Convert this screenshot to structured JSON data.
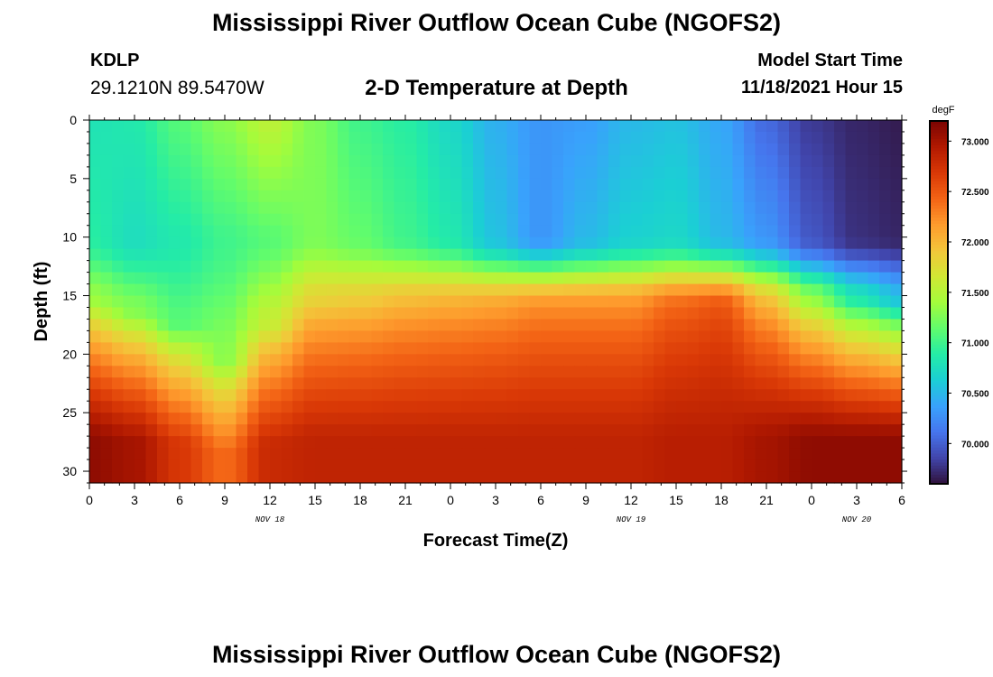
{
  "header": {
    "title": "Mississippi River Outflow Ocean Cube (NGOFS2)",
    "station_id": "KDLP",
    "coordinates": "29.1210N  89.5470W",
    "subtitle": "2-D Temperature at Depth",
    "model_start_label": "Model Start Time",
    "model_start_value": "11/18/2021 Hour 15"
  },
  "footer": {
    "title": "Mississippi River Outflow Ocean Cube (NGOFS2)"
  },
  "colors": {
    "background": "#ffffff",
    "colormap": [
      "#30123b",
      "#4145ab",
      "#4675ed",
      "#39a2fc",
      "#1bcfd4",
      "#24eca6",
      "#61fc6c",
      "#a4fc3b",
      "#d1e834",
      "#f3c63a",
      "#fe9b2d",
      "#f36315",
      "#d93806",
      "#b11901",
      "#7a0402"
    ]
  },
  "chart_data": {
    "type": "heatmap",
    "xlabel": "Forecast Time(Z)",
    "ylabel": "Depth (ft)",
    "colorbar_label": "degF",
    "xlim": [
      0,
      54
    ],
    "ylim": [
      0,
      31
    ],
    "y_inverted": true,
    "x_ticks": [
      0,
      3,
      6,
      9,
      12,
      15,
      18,
      21,
      24,
      27,
      30,
      33,
      36,
      39,
      42,
      45,
      48,
      51,
      54
    ],
    "x_tick_labels": [
      "0",
      "3",
      "6",
      "9",
      "12",
      "15",
      "18",
      "21",
      "0",
      "3",
      "6",
      "9",
      "12",
      "15",
      "18",
      "21",
      "0",
      "3",
      "6"
    ],
    "date_labels": [
      {
        "x": 12,
        "label": "NOV 18"
      },
      {
        "x": 36,
        "label": "NOV 19"
      },
      {
        "x": 51,
        "label": "NOV 20"
      }
    ],
    "y_ticks": [
      0,
      5,
      10,
      15,
      20,
      25,
      30
    ],
    "y_tick_labels": [
      "0",
      "5",
      "10",
      "15",
      "20",
      "25",
      "30"
    ],
    "colorbar_range": [
      69.6,
      73.2
    ],
    "colorbar_ticks": [
      70.0,
      70.5,
      71.0,
      71.5,
      72.0,
      72.5,
      73.0
    ],
    "colorbar_tick_labels": [
      "70.000",
      "70.500",
      "71.000",
      "71.500",
      "72.000",
      "72.500",
      "73.000"
    ],
    "grid": false,
    "legend": "colorbar-right",
    "field_columns": [
      {
        "x": 0,
        "y_top": 0,
        "y_mid": 10,
        "y_deep": 16,
        "y_bottom": 31,
        "t_top": 70.8,
        "t_mid": 70.9,
        "t_deep": 71.4,
        "t_bottom": 73.1
      },
      {
        "x": 3,
        "y_top": 0,
        "y_mid": 10,
        "y_deep": 17,
        "y_bottom": 31,
        "t_top": 70.85,
        "t_mid": 70.75,
        "t_deep": 71.3,
        "t_bottom": 73.0
      },
      {
        "x": 6,
        "y_top": 0,
        "y_mid": 10,
        "y_deep": 18,
        "y_bottom": 31,
        "t_top": 71.1,
        "t_mid": 70.85,
        "t_deep": 71.1,
        "t_bottom": 72.7
      },
      {
        "x": 9,
        "y_top": 0,
        "y_mid": 10,
        "y_deep": 21,
        "y_bottom": 31,
        "t_top": 71.3,
        "t_mid": 71.0,
        "t_deep": 71.3,
        "t_bottom": 72.4
      },
      {
        "x": 12,
        "y_top": 0,
        "y_mid": 10,
        "y_deep": 18,
        "y_bottom": 31,
        "t_top": 71.55,
        "t_mid": 71.1,
        "t_deep": 71.6,
        "t_bottom": 72.8
      },
      {
        "x": 15,
        "y_top": 0,
        "y_mid": 10,
        "y_deep": 16,
        "y_bottom": 31,
        "t_top": 71.25,
        "t_mid": 71.25,
        "t_deep": 71.85,
        "t_bottom": 72.85
      },
      {
        "x": 18,
        "y_top": 0,
        "y_mid": 10,
        "y_deep": 16,
        "y_bottom": 31,
        "t_top": 71.0,
        "t_mid": 71.15,
        "t_deep": 71.9,
        "t_bottom": 72.85
      },
      {
        "x": 21,
        "y_top": 0,
        "y_mid": 10,
        "y_deep": 16,
        "y_bottom": 31,
        "t_top": 70.9,
        "t_mid": 71.0,
        "t_deep": 72.0,
        "t_bottom": 72.85
      },
      {
        "x": 24,
        "y_top": 0,
        "y_mid": 10,
        "y_deep": 16,
        "y_bottom": 31,
        "t_top": 70.7,
        "t_mid": 70.85,
        "t_deep": 72.05,
        "t_bottom": 72.85
      },
      {
        "x": 27,
        "y_top": 0,
        "y_mid": 10,
        "y_deep": 16,
        "y_bottom": 31,
        "t_top": 70.45,
        "t_mid": 70.55,
        "t_deep": 72.1,
        "t_bottom": 72.85
      },
      {
        "x": 30,
        "y_top": 0,
        "y_mid": 10,
        "y_deep": 16,
        "y_bottom": 31,
        "t_top": 70.3,
        "t_mid": 70.3,
        "t_deep": 72.2,
        "t_bottom": 72.85
      },
      {
        "x": 33,
        "y_top": 0,
        "y_mid": 10,
        "y_deep": 16,
        "y_bottom": 31,
        "t_top": 70.35,
        "t_mid": 70.5,
        "t_deep": 72.2,
        "t_bottom": 72.85
      },
      {
        "x": 36,
        "y_top": 0,
        "y_mid": 10,
        "y_deep": 16,
        "y_bottom": 31,
        "t_top": 70.5,
        "t_mid": 70.65,
        "t_deep": 72.2,
        "t_bottom": 72.85
      },
      {
        "x": 39,
        "y_top": 0,
        "y_mid": 10,
        "y_deep": 16,
        "y_bottom": 31,
        "t_top": 70.55,
        "t_mid": 70.7,
        "t_deep": 72.4,
        "t_bottom": 72.9
      },
      {
        "x": 42,
        "y_top": 0,
        "y_mid": 10,
        "y_deep": 16,
        "y_bottom": 31,
        "t_top": 70.4,
        "t_mid": 70.5,
        "t_deep": 72.5,
        "t_bottom": 72.9
      },
      {
        "x": 45,
        "y_top": 0,
        "y_mid": 10,
        "y_deep": 16,
        "y_bottom": 31,
        "t_top": 70.05,
        "t_mid": 70.3,
        "t_deep": 72.0,
        "t_bottom": 73.0
      },
      {
        "x": 48,
        "y_top": 0,
        "y_mid": 10,
        "y_deep": 16,
        "y_bottom": 31,
        "t_top": 69.8,
        "t_mid": 69.95,
        "t_deep": 71.4,
        "t_bottom": 73.1
      },
      {
        "x": 51,
        "y_top": 0,
        "y_mid": 10,
        "y_deep": 16,
        "y_bottom": 31,
        "t_top": 69.7,
        "t_mid": 69.75,
        "t_deep": 70.9,
        "t_bottom": 73.1
      },
      {
        "x": 54,
        "y_top": 0,
        "y_mid": 10,
        "y_deep": 16,
        "y_bottom": 31,
        "t_top": 69.65,
        "t_mid": 69.7,
        "t_deep": 70.6,
        "t_bottom": 73.1
      }
    ]
  }
}
